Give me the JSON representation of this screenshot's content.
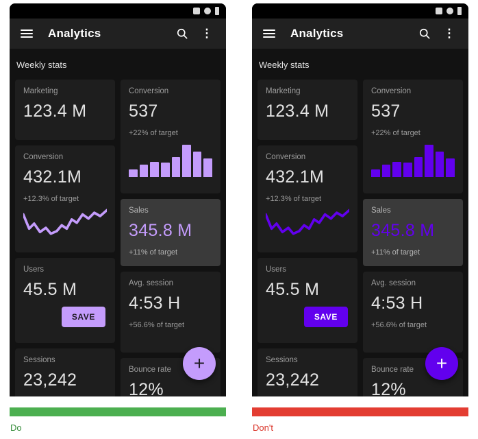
{
  "app": {
    "title": "Analytics",
    "section": "Weekly stats"
  },
  "icons": {
    "menu": "hamburger-menu",
    "search": "magnifier",
    "overflow": "⋮",
    "fab_plus": "+",
    "status": [
      "signal",
      "wifi",
      "battery"
    ]
  },
  "cards": {
    "marketing": {
      "label": "Marketing",
      "value": "123.4 M"
    },
    "conversion_line": {
      "label": "Conversion",
      "value": "432.1M",
      "delta": "+12.3% of target"
    },
    "users": {
      "label": "Users",
      "value": "45.5 M",
      "save": "SAVE"
    },
    "sessions": {
      "label": "Sessions",
      "value": "23,242"
    },
    "conversion_bar": {
      "label": "Conversion",
      "value": "537",
      "delta": "+22% of target"
    },
    "sales": {
      "label": "Sales",
      "value": "345.8 M",
      "delta": "+11% of target"
    },
    "avg_session": {
      "label": "Avg. session",
      "value": "4:53 H",
      "delta": "+56.6% of target"
    },
    "bounce": {
      "label": "Bounce rate",
      "value": "12%"
    }
  },
  "captions": {
    "do": "Do",
    "dont": "Don't"
  },
  "colors": {
    "do_accent": "#c49cfc",
    "dont_accent": "#6200ee",
    "do_bar": "#4caf50",
    "dont_bar": "#e33d32",
    "do_caption": "#388e3c",
    "dont_caption": "#d93025"
  },
  "chart_data": [
    {
      "type": "bar",
      "title": "Conversion weekly sparkline",
      "categories": [
        "1",
        "2",
        "3",
        "4",
        "5",
        "6",
        "7",
        "8"
      ],
      "values": [
        10,
        16,
        20,
        19,
        26,
        42,
        33,
        24
      ],
      "ylim": [
        0,
        44
      ],
      "xlabel": "",
      "ylabel": ""
    },
    {
      "type": "line",
      "title": "Conversion trend sparkline",
      "points": [
        [
          0,
          7
        ],
        [
          7,
          24
        ],
        [
          13,
          18
        ],
        [
          20,
          28
        ],
        [
          27,
          23
        ],
        [
          33,
          30
        ],
        [
          40,
          27
        ],
        [
          46,
          20
        ],
        [
          52,
          24
        ],
        [
          58,
          13
        ],
        [
          64,
          17
        ],
        [
          71,
          7
        ],
        [
          78,
          12
        ],
        [
          85,
          5
        ],
        [
          92,
          9
        ],
        [
          100,
          2
        ]
      ],
      "note": "svg coords, x 0-100, y 0-36, lower y = higher value"
    }
  ]
}
